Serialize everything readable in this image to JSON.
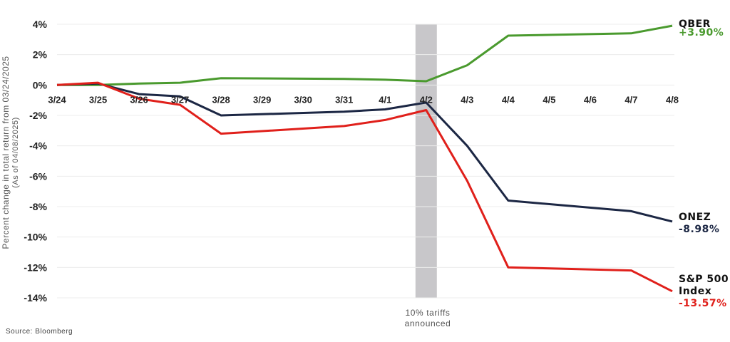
{
  "chart_data": {
    "type": "line",
    "title": "",
    "ylabel": "Percent change in total return from 03/24/2025",
    "ylabel_note": "(As of 04/08/2025)",
    "xlabel": "",
    "ylim": [
      -14,
      4
    ],
    "yticks": [
      4,
      2,
      0,
      -2,
      -4,
      -6,
      -8,
      -10,
      -12,
      -14
    ],
    "ytick_labels": [
      "4%",
      "2%",
      "0%",
      "-2%",
      "-4%",
      "-6%",
      "-8%",
      "-10%",
      "-12%",
      "-14%"
    ],
    "categories": [
      "3/24",
      "3/25",
      "3/26",
      "3/27",
      "3/28",
      "3/29",
      "3/30",
      "3/31",
      "4/1",
      "4/2",
      "4/3",
      "4/4",
      "4/5",
      "4/6",
      "4/7",
      "4/8"
    ],
    "grid": true,
    "series": [
      {
        "name": "QBER",
        "end_label": "+3.90%",
        "color": "#4a9a2e",
        "values": [
          0,
          0.0,
          0.1,
          0.15,
          0.45,
          null,
          null,
          0.4,
          0.35,
          0.25,
          1.3,
          3.25,
          null,
          null,
          3.4,
          3.9
        ]
      },
      {
        "name": "ONEZ",
        "end_label": "-8.98%",
        "color": "#1c2744",
        "values": [
          0,
          0.1,
          -0.6,
          -0.75,
          -2.0,
          null,
          null,
          -1.75,
          -1.6,
          -1.15,
          -4.0,
          -7.6,
          null,
          null,
          -8.3,
          -8.98
        ]
      },
      {
        "name": "S&P 500 Index",
        "end_label": "-13.57%",
        "color": "#e0201b",
        "values": [
          0,
          0.15,
          -0.9,
          -1.3,
          -3.2,
          null,
          null,
          -2.7,
          -2.3,
          -1.65,
          -6.3,
          -12.0,
          null,
          null,
          -12.2,
          -13.57
        ]
      }
    ],
    "annotations": [
      {
        "at": "4/2",
        "type": "shaded-band",
        "text": "10% tariffs announced",
        "color": "#c8c7ca"
      }
    ]
  },
  "source": "Source: Bloomberg"
}
